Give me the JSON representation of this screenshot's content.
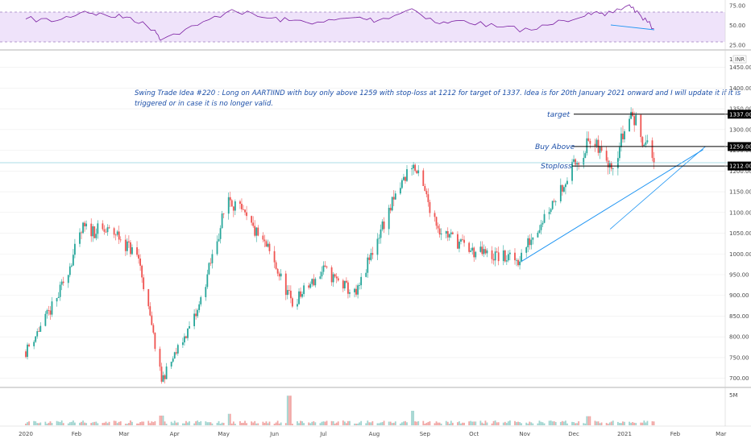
{
  "idea": {
    "line1": "Swing Trade Idea #220 : Long  on AARTIIND  with buy  only above 1259 with stop-loss at 1212 for target of 1337. Idea is for  20th January 2021 onward and I will update it if it is",
    "line2": "triggered or in case it is no longer valid."
  },
  "levels": {
    "target": {
      "label": "target",
      "value": 1337,
      "tag": "1337.00"
    },
    "buy": {
      "label": "Buy Above",
      "value": 1259,
      "tag": "1259.00"
    },
    "stop": {
      "label": "Stoploss",
      "value": 1212,
      "tag": "1212.00"
    }
  },
  "currency_label": "INR",
  "price_axis_top_label": "1",
  "colors": {
    "up": "#26a69a",
    "down": "#ef5350",
    "rsi_line": "#7b1fa2",
    "rsi_band": "#efe3fa",
    "trendline": "#2196f3",
    "annotation": "#1c4fa8",
    "level_line": "#000000"
  },
  "chart_data": [
    {
      "type": "line",
      "name": "rsi",
      "yticks": [
        "75.00",
        "50.00",
        "25.00"
      ],
      "ylim": [
        20,
        80
      ],
      "band": [
        30,
        70
      ],
      "grid": false,
      "x": [
        "2020-01-01",
        "2020-01-20",
        "2020-02-06",
        "2020-02-20",
        "2020-03-05",
        "2020-03-20",
        "2020-03-24",
        "2020-04-15",
        "2020-05-06",
        "2020-05-25",
        "2020-06-10",
        "2020-07-01",
        "2020-07-21",
        "2020-08-03",
        "2020-08-24",
        "2020-09-10",
        "2020-09-25",
        "2020-10-15",
        "2020-11-05",
        "2020-11-25",
        "2020-12-10",
        "2020-12-20",
        "2021-01-04",
        "2021-01-11",
        "2021-01-19"
      ],
      "y": [
        58,
        56,
        68,
        62,
        60,
        44,
        32,
        50,
        70,
        60,
        56,
        54,
        60,
        56,
        71,
        52,
        56,
        48,
        44,
        56,
        66,
        62,
        76,
        62,
        46
      ]
    },
    {
      "type": "candlestick",
      "name": "price",
      "yticks": [
        "1450.00",
        "1400.00",
        "1350.00",
        "1300.00",
        "1250.00",
        "1200.00",
        "1150.00",
        "1100.00",
        "1050.00",
        "1000.00",
        "950.00",
        "900.00",
        "850.00",
        "800.00",
        "750.00",
        "700.00"
      ],
      "ylim": [
        680,
        1490
      ],
      "xticks": [
        "2020",
        "Feb",
        "Mar",
        "Apr",
        "May",
        "Jun",
        "Jul",
        "Aug",
        "Sep",
        "Oct",
        "Nov",
        "Dec",
        "2021",
        "Feb",
        "Mar"
      ],
      "grid": true,
      "months": [
        "2020-01",
        "2020-02",
        "2020-03",
        "2020-04",
        "2020-05",
        "2020-06",
        "2020-07",
        "2020-08",
        "2020-09",
        "2020-10",
        "2020-11",
        "2020-12",
        "2021-01"
      ],
      "key_prices": [
        {
          "date": "2020-01-01",
          "price": 765
        },
        {
          "date": "2020-01-20",
          "price": 890
        },
        {
          "date": "2020-02-05",
          "price": 1060
        },
        {
          "date": "2020-02-25",
          "price": 1050
        },
        {
          "date": "2020-03-10",
          "price": 990
        },
        {
          "date": "2020-03-24",
          "price": 695
        },
        {
          "date": "2020-04-15",
          "price": 860
        },
        {
          "date": "2020-05-04",
          "price": 1140
        },
        {
          "date": "2020-05-28",
          "price": 1010
        },
        {
          "date": "2020-06-12",
          "price": 880
        },
        {
          "date": "2020-07-01",
          "price": 960
        },
        {
          "date": "2020-07-21",
          "price": 900
        },
        {
          "date": "2020-08-05",
          "price": 1060
        },
        {
          "date": "2020-08-24",
          "price": 1220
        },
        {
          "date": "2020-09-10",
          "price": 1060
        },
        {
          "date": "2020-09-30",
          "price": 1005
        },
        {
          "date": "2020-10-28",
          "price": 985
        },
        {
          "date": "2020-11-20",
          "price": 1140
        },
        {
          "date": "2020-12-10",
          "price": 1270
        },
        {
          "date": "2020-12-25",
          "price": 1220
        },
        {
          "date": "2021-01-05",
          "price": 1340
        },
        {
          "date": "2021-01-19",
          "price": 1225
        }
      ],
      "trendline": [
        {
          "date": "2020-10-30",
          "price": 982
        },
        {
          "date": "2021-01-22",
          "price": 1240
        }
      ],
      "hlines": [
        1337,
        1259,
        1212,
        1220
      ]
    },
    {
      "type": "bar",
      "name": "volume",
      "yticks": [
        "5M"
      ],
      "ylim": [
        0,
        6
      ],
      "spike_dates": [
        "2020-03-24",
        "2020-05-04",
        "2020-06-10",
        "2020-08-24",
        "2020-12-10"
      ],
      "spike_values": [
        1.6,
        1.9,
        4.9,
        2.4,
        1.5
      ]
    }
  ]
}
